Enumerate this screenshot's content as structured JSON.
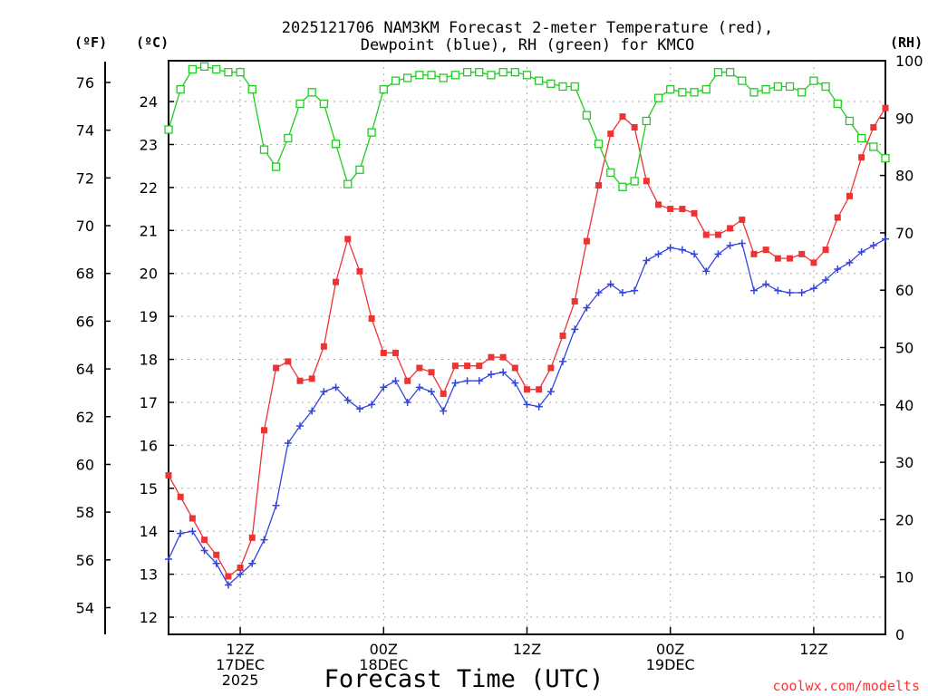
{
  "title_line1": "2025121706 NAM3KM Forecast 2-meter Temperature (red),",
  "title_line2": "Dewpoint (blue), RH (green) for KMCO",
  "credit": "coolwx.com/modelts",
  "chart_data": {
    "type": "line",
    "title": "2025121706 NAM3KM Forecast 2-meter Temperature (red), Dewpoint (blue), RH (green) for KMCO",
    "xlabel": "Forecast Time (UTC)",
    "x_units": "hours since 2025-12-17 06Z",
    "x_ticks": [
      {
        "x": 6,
        "lines": [
          "12Z",
          "17DEC",
          "2025"
        ]
      },
      {
        "x": 18,
        "lines": [
          "00Z",
          "18DEC"
        ]
      },
      {
        "x": 30,
        "lines": [
          "12Z"
        ]
      },
      {
        "x": 42,
        "lines": [
          "00Z",
          "19DEC"
        ]
      },
      {
        "x": 54,
        "lines": [
          "12Z"
        ]
      }
    ],
    "xlim": [
      0,
      60
    ],
    "axes": {
      "fahrenheit": {
        "label": "(ºF)",
        "ticks": [
          54,
          56,
          58,
          60,
          62,
          64,
          66,
          68,
          70,
          72,
          74,
          76
        ]
      },
      "celsius": {
        "label": "(ºC)",
        "ticks": [
          12,
          13,
          14,
          15,
          16,
          17,
          18,
          19,
          20,
          21,
          22,
          23,
          24
        ],
        "ylim": [
          11.6,
          24.95
        ]
      },
      "rh": {
        "label": "(RH)",
        "ticks": [
          0,
          10,
          20,
          30,
          40,
          50,
          60,
          70,
          80,
          90,
          100
        ],
        "ylim": [
          0,
          100
        ]
      }
    },
    "grid": true,
    "x": [
      0,
      1,
      2,
      3,
      4,
      5,
      6,
      7,
      8,
      9,
      10,
      11,
      12,
      13,
      14,
      15,
      16,
      17,
      18,
      19,
      20,
      21,
      22,
      23,
      24,
      25,
      26,
      27,
      28,
      29,
      30,
      31,
      32,
      33,
      34,
      35,
      36,
      37,
      38,
      39,
      40,
      41,
      42,
      43,
      44,
      45,
      46,
      47,
      48,
      49,
      50,
      51,
      52,
      53,
      54,
      55,
      56,
      57,
      58,
      59,
      60
    ],
    "series": [
      {
        "name": "2-meter Temperature",
        "unit": "°C",
        "color": "#ee3333",
        "marker": "filled-square",
        "values": [
          15.3,
          14.8,
          14.3,
          13.8,
          13.45,
          12.95,
          13.15,
          13.85,
          16.35,
          17.8,
          17.95,
          17.5,
          17.55,
          18.3,
          19.8,
          20.8,
          20.05,
          18.95,
          18.15,
          18.15,
          17.5,
          17.8,
          17.7,
          17.2,
          17.85,
          17.85,
          17.85,
          18.05,
          18.05,
          17.8,
          17.3,
          17.3,
          17.8,
          18.55,
          19.35,
          20.75,
          22.05,
          23.25,
          23.65,
          23.4,
          22.15,
          21.6,
          21.5,
          21.5,
          21.4,
          20.9,
          20.9,
          21.05,
          21.25,
          20.45,
          20.55,
          20.35,
          20.35,
          20.45,
          20.25,
          20.55,
          21.3,
          21.8,
          22.7,
          23.4,
          23.85
        ]
      },
      {
        "name": "Dewpoint",
        "unit": "°C",
        "color": "#3344dd",
        "marker": "plus",
        "values": [
          13.35,
          13.95,
          14.0,
          13.55,
          13.25,
          12.75,
          13.0,
          13.25,
          13.8,
          14.6,
          16.05,
          16.45,
          16.8,
          17.25,
          17.35,
          17.05,
          16.85,
          16.95,
          17.35,
          17.5,
          17.0,
          17.35,
          17.25,
          16.8,
          17.45,
          17.5,
          17.5,
          17.65,
          17.7,
          17.45,
          16.95,
          16.9,
          17.25,
          17.95,
          18.7,
          19.2,
          19.55,
          19.75,
          19.55,
          19.6,
          20.3,
          20.45,
          20.6,
          20.55,
          20.45,
          20.05,
          20.45,
          20.65,
          20.7,
          19.6,
          19.75,
          19.6,
          19.55,
          19.55,
          19.65,
          19.85,
          20.1,
          20.25,
          20.5,
          20.65,
          20.8
        ]
      },
      {
        "name": "RH",
        "unit": "%",
        "color": "#22cc22",
        "marker": "open-square",
        "values": [
          88,
          95,
          98.5,
          99,
          98.5,
          98,
          98,
          95,
          84.5,
          81.5,
          86.5,
          92.5,
          94.5,
          92.5,
          85.5,
          78.5,
          81,
          87.5,
          95,
          96.5,
          97,
          97.5,
          97.5,
          97,
          97.5,
          98,
          98,
          97.5,
          98,
          98,
          97.5,
          96.5,
          96,
          95.5,
          95.5,
          90.5,
          85.5,
          80.5,
          78,
          79,
          89.5,
          93.5,
          95,
          94.5,
          94.5,
          95,
          98,
          98,
          96.5,
          94.5,
          95,
          95.5,
          95.5,
          94.5,
          96.5,
          95.5,
          92.5,
          89.5,
          86.5,
          85,
          83
        ]
      }
    ]
  }
}
